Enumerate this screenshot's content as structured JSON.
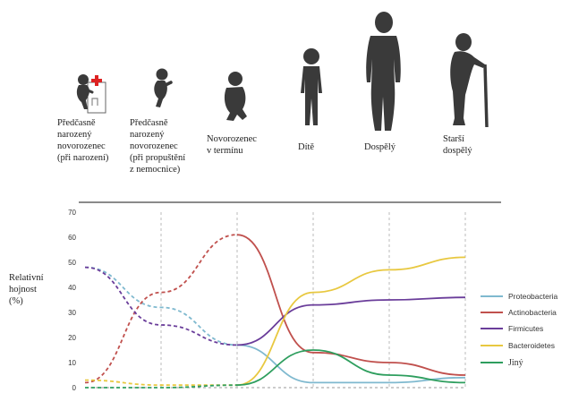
{
  "stages": [
    {
      "label": "Předčasně\nnarozený\nnovorozenec\n(při narození)",
      "icon": "premature-infant-with-incubator-icon"
    },
    {
      "label": "Předčasně\nnarozený\nnovorozenec\n(při propuštění\nz nemocnice)",
      "icon": "premature-infant-icon"
    },
    {
      "label": "Novorozenec\nv termínu",
      "icon": "term-newborn-icon"
    },
    {
      "label": "Dítě",
      "icon": "child-icon"
    },
    {
      "label": "Dospělý",
      "icon": "adult-icon"
    },
    {
      "label": "Starší\ndospělý",
      "icon": "elderly-with-cane-icon"
    }
  ],
  "chart_data": {
    "type": "line",
    "ylabel": "Relativní\nhojnost\n(%)",
    "xlabel": "",
    "title": "",
    "ylim": [
      0,
      70
    ],
    "yticks": [
      "0",
      "10",
      "20",
      "30",
      "40",
      "50",
      "60",
      "70"
    ],
    "x": [
      "Předčasně narozený novorozenec (při narození)",
      "Předčasně narozený novorozenec (při propuštění z nemocnice)",
      "Novorozenec v termínu",
      "Dítě",
      "Dospělý",
      "Starší dospělý"
    ],
    "grid": "vertical dashed lines at each stage",
    "legend_position": "right",
    "series": [
      {
        "name": "Proteobacteria",
        "color": "#7fb9cf",
        "values": [
          48,
          32,
          17,
          2,
          2,
          4
        ],
        "dashed_until_index": 2
      },
      {
        "name": "Actinobacteria",
        "color": "#c0504d",
        "values": [
          2,
          38,
          61,
          14,
          10,
          5
        ],
        "dashed_until_index": 2
      },
      {
        "name": "Firmicutes",
        "color": "#6a3d9a",
        "values": [
          48,
          25,
          17,
          33,
          35,
          36
        ],
        "dashed_until_index": 2
      },
      {
        "name": "Bacteroidetes",
        "color": "#e8c840",
        "values": [
          3,
          1,
          1,
          38,
          47,
          52
        ],
        "dashed_until_index": 2
      },
      {
        "name": "Jiný",
        "color": "#2e9e5e",
        "values": [
          0,
          0,
          1,
          15,
          5,
          2
        ],
        "dashed_until_index": 2
      }
    ]
  }
}
